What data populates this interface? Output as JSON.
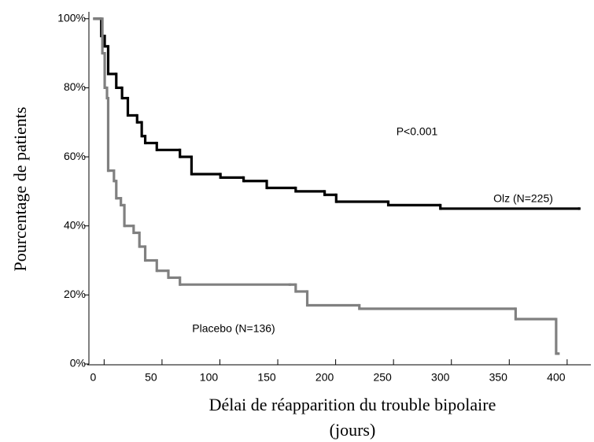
{
  "chart_data": {
    "type": "step",
    "x_label": [
      "Délai de réapparition du trouble bipolaire",
      "(jours)"
    ],
    "y_label": "Pourcentage de patients",
    "annotation": "P<0.001",
    "xlim": [
      -5,
      430
    ],
    "ylim": [
      0,
      102
    ],
    "xticks": [
      0,
      50,
      100,
      150,
      200,
      250,
      300,
      350,
      400
    ],
    "yticks": [
      {
        "value": 0,
        "label": "0%"
      },
      {
        "value": 20,
        "label": "20%"
      },
      {
        "value": 40,
        "label": "40%"
      },
      {
        "value": 60,
        "label": "60%"
      },
      {
        "value": 80,
        "label": "80%"
      },
      {
        "value": 100,
        "label": "100%"
      }
    ],
    "series": [
      {
        "name": "Olz (N=225)",
        "color": "#000000",
        "x": [
          0,
          7,
          10,
          13,
          20,
          25,
          30,
          38,
          42,
          45,
          55,
          75,
          85,
          110,
          130,
          150,
          175,
          200,
          210,
          255,
          300,
          420
        ],
        "values": [
          100,
          95,
          92,
          84,
          80,
          77,
          72,
          70,
          66,
          64,
          62,
          60,
          55,
          54,
          53,
          51,
          50,
          49,
          47,
          46,
          45,
          45
        ]
      },
      {
        "name": "Placebo (N=136)",
        "color": "#808080",
        "x": [
          0,
          8,
          10,
          12,
          13,
          18,
          20,
          24,
          27,
          35,
          40,
          45,
          55,
          65,
          75,
          170,
          175,
          185,
          230,
          365,
          400,
          402
        ],
        "values": [
          100,
          90,
          80,
          77,
          56,
          53,
          48,
          46,
          40,
          38,
          34,
          30,
          27,
          25,
          23,
          23,
          21,
          17,
          16,
          13,
          3,
          3
        ]
      }
    ]
  }
}
